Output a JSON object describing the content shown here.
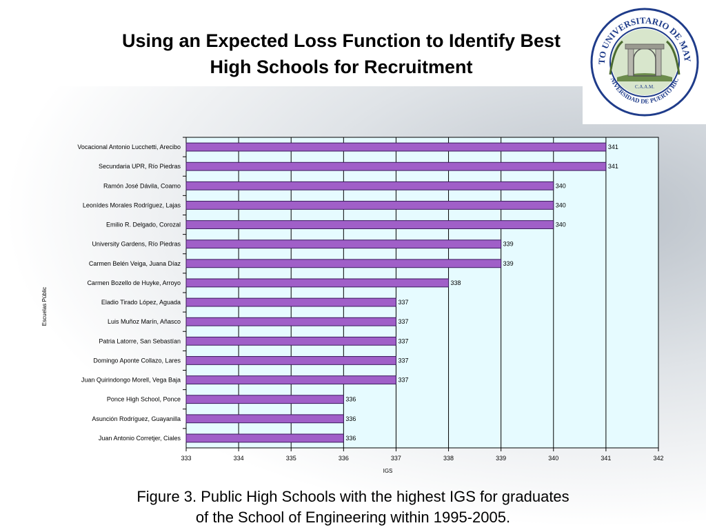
{
  "slide": {
    "title_line1": "Using an Expected Loss Function to Identify Best",
    "title_line2": "High Schools for Recruitment",
    "caption_line1": "Figure 3. Public High Schools with the highest IGS for graduates",
    "caption_line2": "of the School of Engineering within 1995-2005."
  },
  "logo": {
    "text_top": "RECINTO UNIVERSITARIO DE MAYAGÜEZ",
    "text_bottom": "UNIVERSIDAD DE PUERTO RICO",
    "text_center": "C.A.A.M.",
    "icon": "university-seal-icon",
    "color": "#1f3c8a"
  },
  "chart_data": {
    "type": "bar",
    "orientation": "horizontal",
    "categories": [
      "Vocacional Antonio Lucchetti, Arecibo",
      "Secundaria UPR, Río Piedras",
      "Ramón José Dávila, Coamo",
      "Leonídes Morales Rodríguez, Lajas",
      "Emilio R. Delgado, Corozal",
      "University Gardens, Río Piedras",
      "Carmen Belén Veiga, Juana Díaz",
      "Carmen Bozello de Huyke, Arroyo",
      "Eladio Tirado López, Aguada",
      "Luis Muñoz Marín, Añasco",
      "Patria Latorre, San Sebastían",
      "Domingo Aponte Collazo, Lares",
      "Juan Quirindongo Morell, Vega Baja",
      "Ponce High School, Ponce",
      "Asunción Rodríguez, Guayanilla",
      "Juan Antonio Corretjer, Ciales"
    ],
    "values": [
      341,
      341,
      340,
      340,
      340,
      339,
      339,
      338,
      337,
      337,
      337,
      337,
      337,
      336,
      336,
      336
    ],
    "xlabel": "IGS",
    "ylabel": "Escuelas Públic",
    "xlim": [
      333,
      342
    ],
    "xticks": [
      "333",
      "334",
      "335",
      "336",
      "337",
      "338",
      "339",
      "340",
      "341",
      "342"
    ],
    "data_labels": true,
    "grid": "vertical",
    "bar_color": "#a05fc8",
    "bar_edge_color": "#3a1a5c",
    "plot_background": "#e6fbff"
  }
}
